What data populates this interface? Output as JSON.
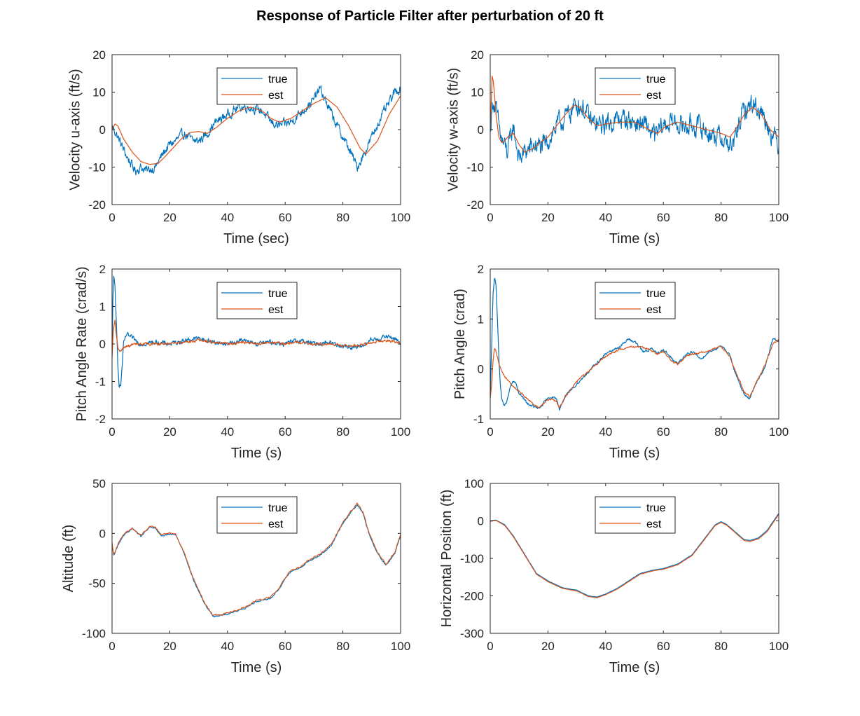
{
  "figure": {
    "title": "Response of Particle Filter after perturbation of 20 ft",
    "colors": {
      "true": "#0072BD",
      "est": "#D95319",
      "axis": "#262626"
    }
  },
  "chart_data": [
    {
      "type": "line",
      "xlabel": "Time (sec)",
      "ylabel": "Velocity u-axis (ft/s)",
      "xlim": [
        0,
        100
      ],
      "ylim": [
        -20,
        20
      ],
      "xticks": [
        0,
        20,
        40,
        60,
        80,
        100
      ],
      "yticks": [
        -20,
        -10,
        0,
        10,
        20
      ],
      "legend": {
        "placement": "top-center",
        "entries": [
          "true",
          "est"
        ]
      },
      "noise": {
        "true": 1.0
      },
      "series": [
        {
          "name": "true",
          "color": "#0072BD",
          "x": [
            0,
            2,
            5,
            8,
            10,
            12,
            15,
            18,
            20,
            22,
            25,
            28,
            30,
            33,
            36,
            40,
            44,
            48,
            52,
            55,
            58,
            62,
            66,
            70,
            72,
            75,
            78,
            82,
            85,
            87,
            90,
            93,
            96,
            98,
            100
          ],
          "y": [
            1,
            -2,
            -7,
            -11,
            -10,
            -11,
            -10,
            -6,
            -4,
            -3,
            -1,
            -3,
            -3,
            -1,
            2,
            4,
            6,
            6,
            5,
            2,
            1,
            2,
            5,
            8,
            11,
            6,
            1,
            -5,
            -10,
            -7,
            -2,
            3,
            7,
            10,
            11
          ]
        },
        {
          "name": "est",
          "color": "#D95319",
          "x": [
            0,
            1,
            2,
            4,
            7,
            10,
            13,
            16,
            18,
            21,
            24,
            27,
            30,
            33,
            36,
            40,
            44,
            48,
            52,
            55,
            58,
            62,
            66,
            70,
            74,
            78,
            82,
            86,
            88,
            92,
            96,
            100
          ],
          "y": [
            0,
            1.5,
            1,
            -2.5,
            -6,
            -8.5,
            -9.3,
            -9,
            -7.5,
            -5,
            -2.5,
            -0.8,
            -0.5,
            -1,
            0.5,
            3,
            5,
            6,
            5,
            3,
            2,
            3,
            5,
            7,
            8.5,
            6,
            1,
            -5,
            -6.5,
            -3,
            4,
            9
          ]
        }
      ]
    },
    {
      "type": "line",
      "xlabel": "Time (s)",
      "ylabel": "Velocity w-axis (ft/s)",
      "xlim": [
        0,
        100
      ],
      "ylim": [
        -20,
        20
      ],
      "xticks": [
        0,
        20,
        40,
        60,
        80,
        100
      ],
      "yticks": [
        -20,
        -10,
        0,
        10,
        20
      ],
      "legend": {
        "placement": "top-center",
        "entries": [
          "true",
          "est"
        ]
      },
      "noise": {
        "true": 2.2
      },
      "series": [
        {
          "name": "true",
          "color": "#0072BD",
          "x": [
            0,
            1,
            2,
            4,
            6,
            8,
            10,
            12,
            14,
            16,
            18,
            20,
            23,
            26,
            28,
            30,
            32,
            35,
            38,
            42,
            46,
            50,
            54,
            57,
            60,
            63,
            67,
            72,
            76,
            80,
            84,
            86,
            88,
            91,
            94,
            97,
            100
          ],
          "y": [
            0,
            8,
            5,
            -3,
            -6,
            1,
            -8,
            -6,
            -5,
            -4,
            -5,
            -3,
            1,
            3,
            5,
            7,
            6,
            2,
            1,
            2,
            3,
            2,
            1,
            -2,
            1,
            2,
            1,
            1,
            -1,
            -2,
            -5,
            1,
            5,
            7,
            5,
            0,
            -4
          ]
        },
        {
          "name": "est",
          "color": "#D95319",
          "x": [
            0,
            0.7,
            1.2,
            2,
            3,
            4,
            5,
            6,
            8,
            10,
            12,
            15,
            18,
            20,
            23,
            26,
            29,
            31,
            34,
            37,
            40,
            45,
            50,
            55,
            58,
            61,
            65,
            70,
            75,
            80,
            83,
            85,
            88,
            91,
            94,
            97,
            100
          ],
          "y": [
            0,
            15,
            12,
            4,
            -2,
            -3.5,
            -3,
            -2,
            -1,
            -4,
            -6,
            -5,
            -3,
            -2,
            1,
            4,
            6.5,
            6,
            3,
            1,
            1.5,
            2,
            2,
            0,
            -1,
            1,
            2,
            1,
            0,
            -1,
            -2,
            0,
            4,
            6,
            4,
            0,
            -2
          ]
        }
      ]
    },
    {
      "type": "line",
      "xlabel": "Time (s)",
      "ylabel": "Pitch Angle Rate (crad/s)",
      "xlim": [
        0,
        100
      ],
      "ylim": [
        -2,
        2
      ],
      "xticks": [
        0,
        20,
        40,
        60,
        80,
        100
      ],
      "yticks": [
        -2,
        -1,
        0,
        1,
        2
      ],
      "legend": {
        "placement": "top-center",
        "entries": [
          "true",
          "est"
        ]
      },
      "noise": {
        "true": 0.05,
        "est": 0.03
      },
      "series": [
        {
          "name": "true",
          "color": "#0072BD",
          "x": [
            0,
            0.3,
            0.6,
            1,
            1.5,
            2,
            2.5,
            3,
            3.5,
            4,
            5,
            6,
            8,
            10,
            15,
            20,
            25,
            30,
            35,
            40,
            45,
            50,
            55,
            60,
            65,
            70,
            75,
            80,
            85,
            88,
            90,
            95,
            98,
            100
          ],
          "y": [
            -0.3,
            1.2,
            1.9,
            1.5,
            0.5,
            -0.5,
            -1.15,
            -1.1,
            -0.6,
            0,
            0.25,
            0.2,
            0.1,
            0,
            0.05,
            0,
            0.1,
            0.15,
            0.05,
            0,
            0.1,
            0,
            0.05,
            0,
            0.1,
            0,
            0.05,
            -0.05,
            -0.1,
            0,
            0.1,
            0.2,
            0.15,
            0
          ]
        },
        {
          "name": "est",
          "color": "#D95319",
          "x": [
            0,
            0.4,
            1,
            1.5,
            2,
            3,
            4,
            6,
            8,
            10,
            15,
            20,
            25,
            30,
            35,
            40,
            45,
            50,
            55,
            60,
            65,
            70,
            75,
            80,
            85,
            90,
            95,
            98,
            100
          ],
          "y": [
            -0.4,
            0.3,
            0.65,
            0.2,
            -0.1,
            -0.2,
            -0.1,
            -0.05,
            0,
            0,
            0,
            0,
            0.05,
            0.1,
            0.05,
            0,
            0.05,
            0,
            0.05,
            0,
            0.05,
            0,
            0,
            -0.05,
            -0.05,
            0.05,
            0.1,
            0.05,
            0
          ]
        }
      ]
    },
    {
      "type": "line",
      "xlabel": "Time (s)",
      "ylabel": "Pitch Angle (crad)",
      "xlim": [
        0,
        100
      ],
      "ylim": [
        -1,
        2
      ],
      "xticks": [
        0,
        20,
        40,
        60,
        80,
        100
      ],
      "yticks": [
        -1,
        0,
        1,
        2
      ],
      "legend": {
        "placement": "top-center",
        "entries": [
          "true",
          "est"
        ]
      },
      "noise": {
        "true": 0.02,
        "est": 0.015
      },
      "series": [
        {
          "name": "true",
          "color": "#0072BD",
          "x": [
            0,
            0.5,
            1,
            1.5,
            2,
            2.5,
            3,
            3.5,
            4,
            5,
            6,
            7,
            8,
            9,
            10,
            11,
            13,
            15,
            17,
            19,
            21,
            23,
            24,
            26,
            30,
            35,
            40,
            45,
            48,
            50,
            53,
            56,
            58,
            60,
            63,
            65,
            68,
            70,
            73,
            76,
            80,
            83,
            85,
            88,
            90,
            92,
            95,
            98,
            100
          ],
          "y": [
            -0.6,
            0.5,
            1.5,
            1.85,
            1.7,
            1.0,
            0.2,
            -0.3,
            -0.6,
            -0.75,
            -0.6,
            -0.35,
            -0.25,
            -0.3,
            -0.5,
            -0.55,
            -0.7,
            -0.75,
            -0.8,
            -0.65,
            -0.55,
            -0.6,
            -0.8,
            -0.55,
            -0.3,
            0,
            0.3,
            0.45,
            0.6,
            0.55,
            0.35,
            0.4,
            0.3,
            0.4,
            0.2,
            0.1,
            0.3,
            0.35,
            0.2,
            0.35,
            0.45,
            0.3,
            -0.1,
            -0.5,
            -0.6,
            -0.3,
            0,
            0.6,
            0.55
          ]
        },
        {
          "name": "est",
          "color": "#D95319",
          "x": [
            0,
            0.5,
            1,
            1.5,
            2,
            3,
            4,
            5,
            7,
            9,
            11,
            13,
            15,
            17,
            19,
            21,
            23,
            24,
            26,
            30,
            35,
            40,
            45,
            50,
            55,
            58,
            60,
            63,
            65,
            68,
            70,
            75,
            80,
            83,
            85,
            88,
            90,
            92,
            95,
            98,
            100
          ],
          "y": [
            -0.6,
            -0.3,
            0.2,
            0.42,
            0.35,
            0.1,
            -0.05,
            -0.15,
            -0.3,
            -0.4,
            -0.5,
            -0.6,
            -0.7,
            -0.78,
            -0.65,
            -0.6,
            -0.65,
            -0.78,
            -0.55,
            -0.25,
            0,
            0.25,
            0.4,
            0.45,
            0.4,
            0.3,
            0.35,
            0.15,
            0.1,
            0.25,
            0.3,
            0.35,
            0.45,
            0.25,
            -0.05,
            -0.45,
            -0.55,
            -0.3,
            0.05,
            0.5,
            0.6
          ]
        }
      ]
    },
    {
      "type": "line",
      "xlabel": "Time (s)",
      "ylabel": "Altitude (ft)",
      "xlim": [
        0,
        100
      ],
      "ylim": [
        -100,
        50
      ],
      "xticks": [
        0,
        20,
        40,
        60,
        80,
        100
      ],
      "yticks": [
        -100,
        -50,
        0,
        50
      ],
      "legend": {
        "placement": "top-center",
        "entries": [
          "true",
          "est"
        ]
      },
      "noise": {
        "true": 0.6,
        "est": 0.6
      },
      "series": [
        {
          "name": "true",
          "color": "#0072BD",
          "x": [
            0,
            0.5,
            1,
            2,
            4,
            7,
            10,
            13,
            15,
            17,
            20,
            22,
            25,
            28,
            32,
            35,
            38,
            42,
            46,
            50,
            55,
            58,
            60,
            62,
            65,
            68,
            72,
            76,
            80,
            82,
            85,
            87,
            89,
            92,
            95,
            98,
            100
          ],
          "y": [
            -10,
            -22,
            -20,
            -12,
            -2,
            5,
            -3,
            6,
            5,
            -2,
            -1,
            -1,
            -20,
            -45,
            -70,
            -83,
            -82,
            -79,
            -75,
            -68,
            -65,
            -55,
            -45,
            -38,
            -35,
            -28,
            -22,
            -12,
            10,
            18,
            29,
            20,
            0,
            -20,
            -32,
            -20,
            -2
          ]
        },
        {
          "name": "est",
          "color": "#D95319",
          "x": [
            0,
            0.5,
            1,
            2,
            4,
            7,
            10,
            13,
            15,
            17,
            20,
            22,
            25,
            28,
            32,
            35,
            38,
            42,
            46,
            50,
            55,
            58,
            60,
            62,
            65,
            68,
            72,
            76,
            80,
            82,
            85,
            87,
            89,
            92,
            95,
            98,
            100
          ],
          "y": [
            -9,
            -21,
            -19,
            -11,
            -1,
            5,
            -2,
            7,
            6,
            -1,
            0,
            -1,
            -19,
            -44,
            -69,
            -82,
            -81,
            -78,
            -74,
            -67,
            -64,
            -54,
            -44,
            -37,
            -34,
            -27,
            -21,
            -11,
            11,
            19,
            30,
            21,
            1,
            -19,
            -31,
            -19,
            -1
          ]
        }
      ]
    },
    {
      "type": "line",
      "xlabel": "Time (s)",
      "ylabel": "Horizontal Position (ft)",
      "xlim": [
        0,
        100
      ],
      "ylim": [
        -300,
        100
      ],
      "xticks": [
        0,
        20,
        40,
        60,
        80,
        100
      ],
      "yticks": [
        -300,
        -200,
        -100,
        0,
        100
      ],
      "legend": {
        "placement": "top-center",
        "entries": [
          "true",
          "est"
        ]
      },
      "noise": {
        "true": 0.3,
        "est": 0.3
      },
      "series": [
        {
          "name": "true",
          "color": "#0072BD",
          "x": [
            0,
            2,
            5,
            8,
            12,
            16,
            20,
            25,
            30,
            34,
            37,
            40,
            44,
            48,
            52,
            56,
            60,
            65,
            70,
            75,
            78,
            80,
            82,
            85,
            88,
            90,
            93,
            96,
            100
          ],
          "y": [
            0,
            2,
            -10,
            -40,
            -90,
            -140,
            -160,
            -178,
            -185,
            -200,
            -203,
            -195,
            -180,
            -160,
            -140,
            -132,
            -127,
            -115,
            -90,
            -40,
            -10,
            -2,
            -10,
            -30,
            -50,
            -52,
            -45,
            -25,
            20
          ]
        },
        {
          "name": "est",
          "color": "#D95319",
          "x": [
            0,
            2,
            5,
            8,
            12,
            16,
            20,
            25,
            30,
            34,
            37,
            40,
            44,
            48,
            52,
            56,
            60,
            65,
            70,
            75,
            78,
            80,
            82,
            85,
            88,
            90,
            93,
            96,
            100
          ],
          "y": [
            -1,
            1,
            -12,
            -42,
            -92,
            -142,
            -162,
            -180,
            -187,
            -202,
            -205,
            -197,
            -182,
            -162,
            -142,
            -134,
            -129,
            -117,
            -92,
            -42,
            -12,
            -4,
            -12,
            -32,
            -52,
            -55,
            -48,
            -28,
            17
          ]
        }
      ]
    }
  ]
}
